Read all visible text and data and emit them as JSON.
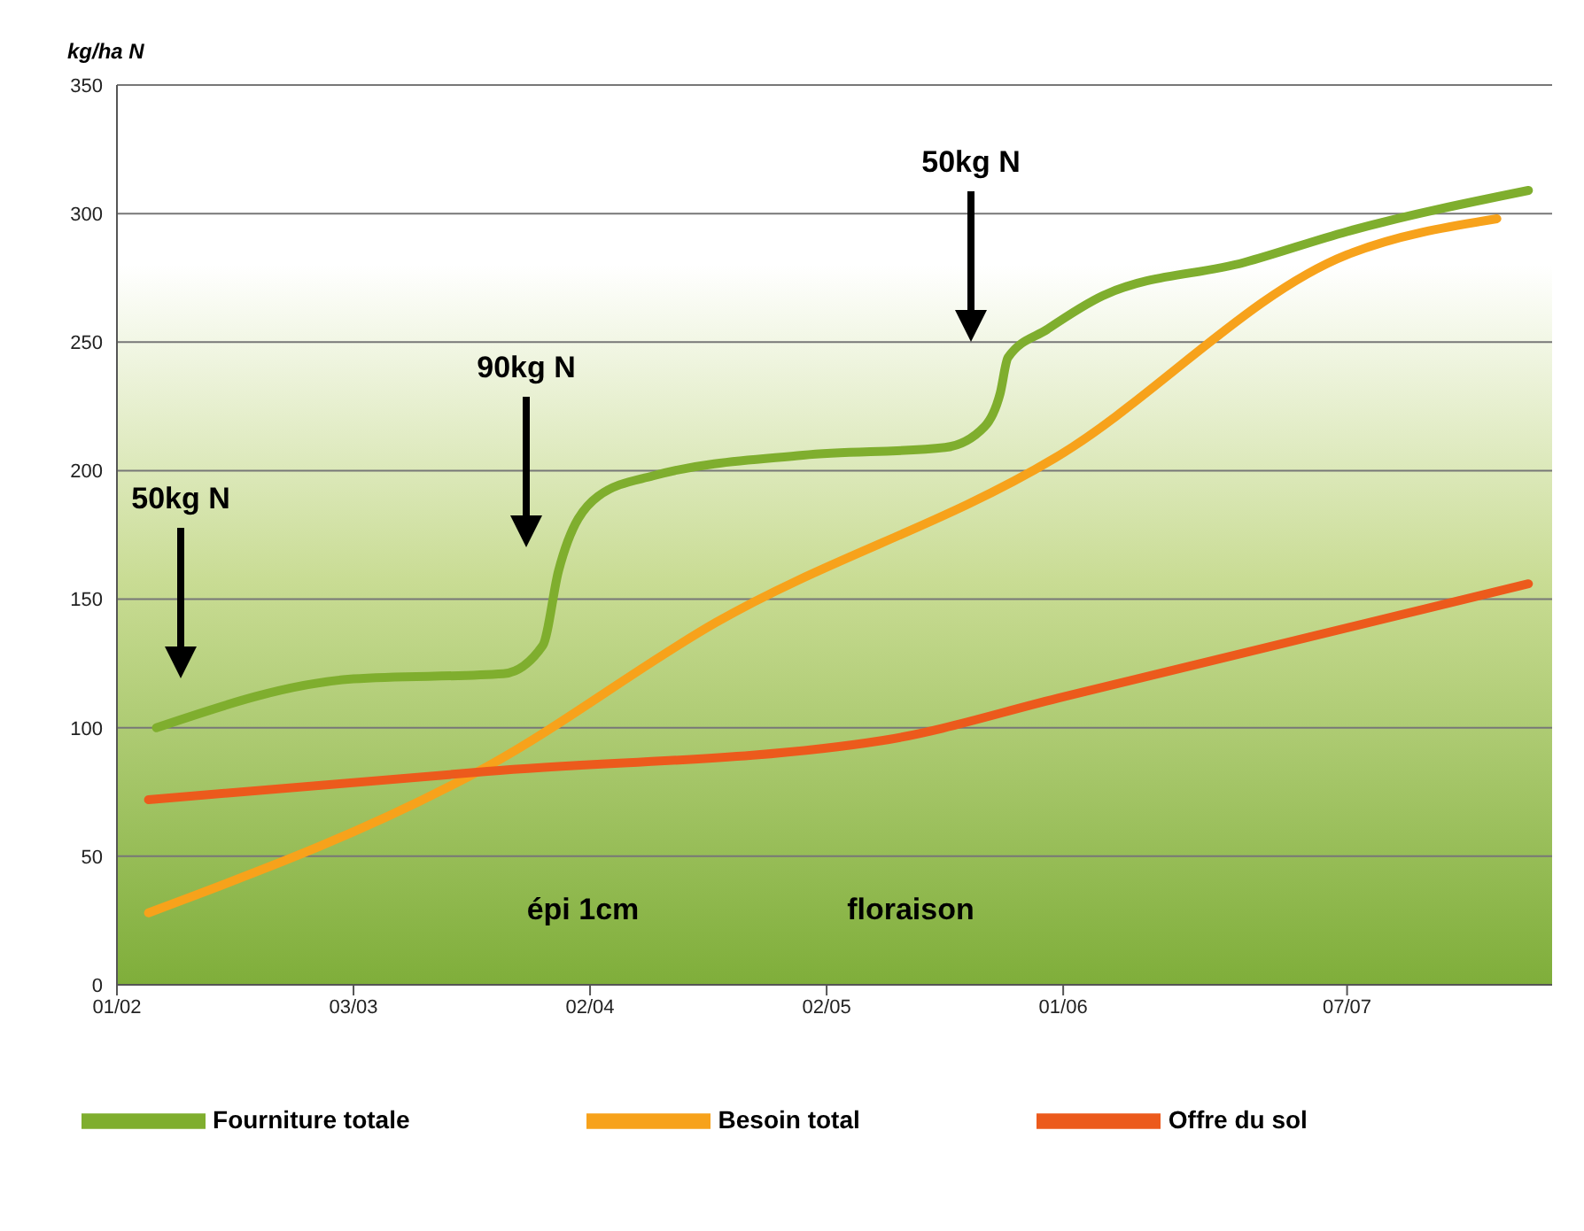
{
  "chart_data": {
    "type": "line",
    "ylabel": "kg/ha N",
    "xlim": [
      "--02-01",
      "--08-02"
    ],
    "xticks": [
      {
        "value": "--02-01",
        "label": "01/02"
      },
      {
        "value": "--03-03",
        "label": "03/03"
      },
      {
        "value": "--04-02",
        "label": "02/04"
      },
      {
        "value": "--05-02",
        "label": "02/05"
      },
      {
        "value": "--06-01",
        "label": "01/06"
      },
      {
        "value": "--07-07",
        "label": "07/07"
      }
    ],
    "ylim": [
      0,
      350
    ],
    "yticks": [
      0,
      50,
      100,
      150,
      200,
      250,
      300,
      350
    ],
    "grid": "y",
    "legend": "bottom",
    "marker": "none",
    "line_style": "solid",
    "series": [
      {
        "name": "Fourniture totale",
        "color": "#7fae2e",
        "x": [
          "--02-06",
          "--03-03",
          "--03-22",
          "--03-27",
          "--03-29",
          "--04-03",
          "--04-10",
          "--04-29",
          "--05-17",
          "--05-22",
          "--05-24",
          "--05-25",
          "--05-30",
          "--06-06",
          "--06-24",
          "--07-07",
          "--07-30"
        ],
        "values": [
          100,
          119,
          121,
          132,
          161,
          190,
          198,
          206,
          209,
          217,
          230,
          244,
          255,
          268,
          281,
          293,
          309
        ]
      },
      {
        "name": "Besoin total",
        "color": "#f7a21b",
        "x": [
          "--02-05",
          "--03-20",
          "--04-18",
          "--05-31",
          "--07-07",
          "--07-26"
        ],
        "values": [
          28,
          85,
          141,
          205,
          284,
          298
        ]
      },
      {
        "name": "Offre du sol",
        "color": "#ec5a1c",
        "x": [
          "--02-05",
          "--03-20",
          "--05-09",
          "--06-01",
          "--07-30"
        ],
        "values": [
          72,
          83,
          95,
          112,
          156
        ]
      }
    ],
    "annotations": [
      "50kg N",
      "90kg N",
      "50kg N",
      "épi 1cm",
      "floraison"
    ]
  }
}
